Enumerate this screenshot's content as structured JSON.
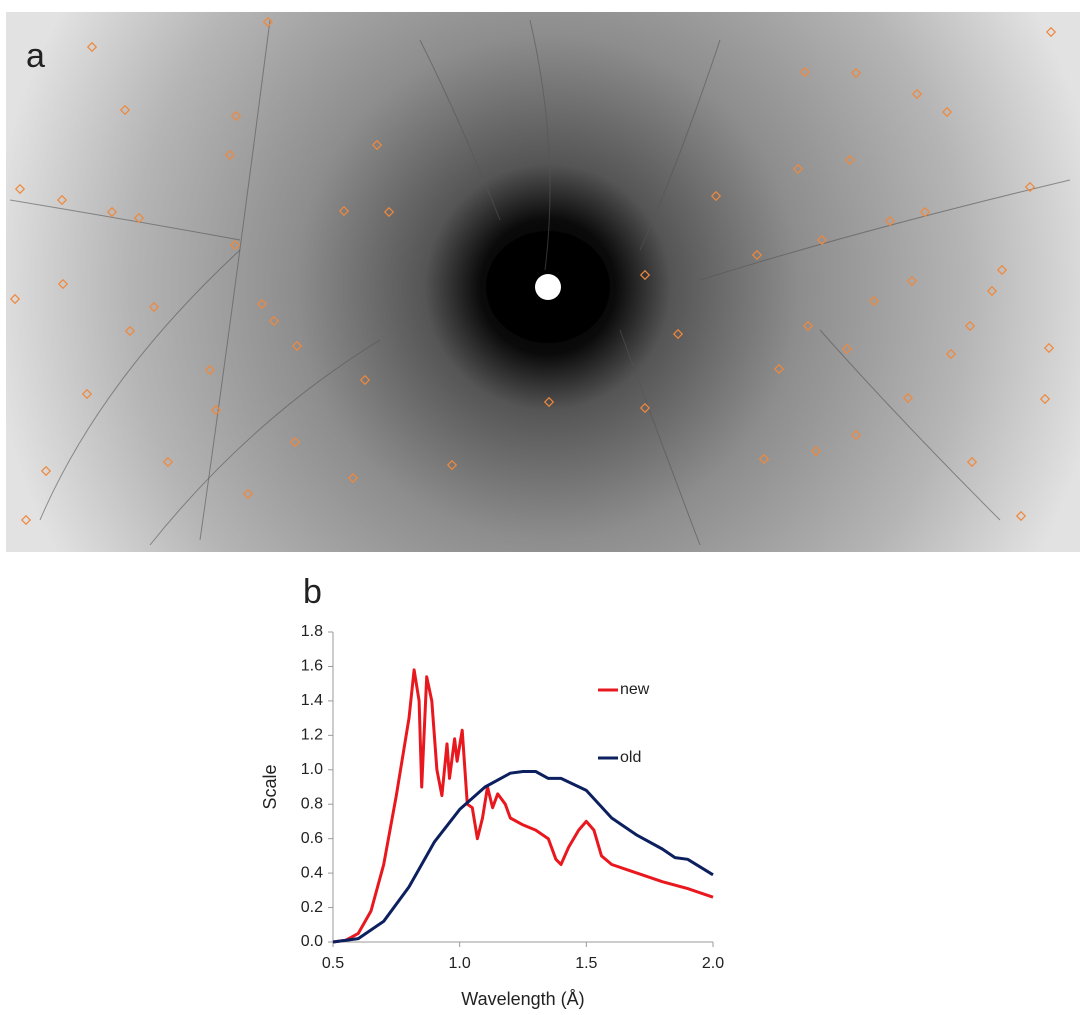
{
  "panel_labels": [
    "a",
    "b"
  ],
  "chart_data": {
    "type": "line",
    "xlabel": "Wavelength (Å)",
    "ylabel": "Scale",
    "xlim": [
      0.5,
      2.0
    ],
    "xticks": [
      0.5,
      {
        "value": 1.0,
        "label": "1.0"
      },
      1.5,
      {
        "value": 2.0,
        "label": "2.0"
      }
    ],
    "ylim": [
      0,
      1.8
    ],
    "yticks": [
      {
        "value": 0,
        "label": "0.0"
      },
      0.2,
      0.4,
      0.6,
      0.8,
      {
        "value": 1.0,
        "label": "1.0"
      },
      1.2,
      1.4,
      1.6,
      1.8
    ],
    "legend": "right",
    "series": [
      {
        "name": "new",
        "color": "#e8181e",
        "x": [
          0.5,
          0.55,
          0.6,
          0.65,
          0.7,
          0.75,
          0.8,
          0.82,
          0.84,
          0.85,
          0.87,
          0.89,
          0.91,
          0.93,
          0.95,
          0.96,
          0.98,
          0.99,
          1.01,
          1.03,
          1.05,
          1.07,
          1.09,
          1.11,
          1.13,
          1.15,
          1.18,
          1.2,
          1.25,
          1.3,
          1.35,
          1.38,
          1.4,
          1.43,
          1.47,
          1.5,
          1.53,
          1.56,
          1.6,
          1.7,
          1.8,
          1.9,
          2.0
        ],
        "values": [
          0,
          0.01,
          0.05,
          0.18,
          0.45,
          0.85,
          1.3,
          1.58,
          1.4,
          0.9,
          1.54,
          1.4,
          1.0,
          0.85,
          1.15,
          0.95,
          1.18,
          1.05,
          1.23,
          0.8,
          0.78,
          0.6,
          0.72,
          0.9,
          0.78,
          0.86,
          0.8,
          0.72,
          0.68,
          0.65,
          0.6,
          0.48,
          0.45,
          0.55,
          0.65,
          0.7,
          0.65,
          0.5,
          0.45,
          0.4,
          0.35,
          0.31,
          0.26
        ]
      },
      {
        "name": "old",
        "color": "#0c1f5e",
        "x": [
          0.5,
          0.6,
          0.7,
          0.8,
          0.9,
          1.0,
          1.1,
          1.2,
          1.25,
          1.3,
          1.35,
          1.4,
          1.5,
          1.6,
          1.7,
          1.8,
          1.85,
          1.9,
          2.0
        ],
        "values": [
          0,
          0.02,
          0.12,
          0.32,
          0.58,
          0.77,
          0.9,
          0.98,
          0.99,
          0.99,
          0.95,
          0.95,
          0.88,
          0.72,
          0.62,
          0.54,
          0.49,
          0.48,
          0.39
        ]
      }
    ]
  }
}
